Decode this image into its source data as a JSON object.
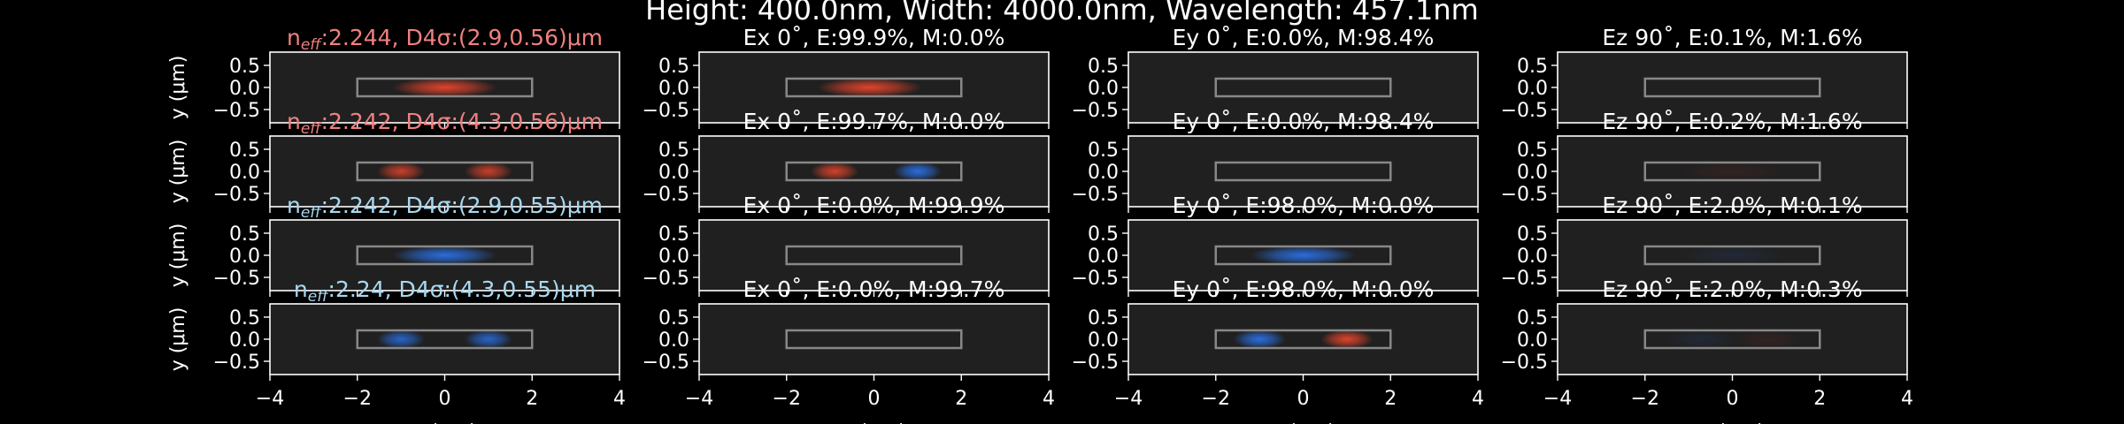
{
  "figure": {
    "suptitle": "Height: 400.0nm, Width: 4000.0nm, Wavelength: 457.1nm",
    "background": "#000000",
    "panel_bg": "#202020",
    "text_color": "#ffffff",
    "red": "#ff4a2e",
    "blue": "#2c7bff",
    "waveguide_outline": "#888888"
  },
  "chart_data": {
    "type": "heatmap",
    "xlabel": "x (μm)",
    "ylabel": "y (μm)",
    "xlim": [
      -4,
      4
    ],
    "ylim": [
      -0.8,
      0.8
    ],
    "xticks": [
      "−4",
      "−2",
      "0",
      "2",
      "4"
    ],
    "yticks": [
      "0.5",
      "0.0",
      "−0.5"
    ],
    "waveguide": {
      "x": [
        -2,
        2
      ],
      "y": [
        -0.2,
        0.2
      ]
    },
    "column_titles": [
      [
        "Ex 0˚, E:99.9%, M:0.0%",
        "Ey 0˚, E:0.0%, M:98.4%",
        "Ez 90˚, E:0.1%, M:1.6%"
      ],
      [
        "Ex 0˚, E:99.7%, M:0.0%",
        "Ey 0˚, E:0.0%, M:98.4%",
        "Ez 90˚, E:0.2%, M:1.6%"
      ],
      [
        "Ex 0˚, E:0.0%, M:99.9%",
        "Ey 0˚, E:98.0%, M:0.0%",
        "Ez 90˚, E:2.0%, M:0.1%"
      ],
      [
        "Ex 0˚, E:0.0%, M:99.7%",
        "Ey 0˚, E:98.0%, M:0.0%",
        "Ez 90˚, E:2.0%, M:0.3%"
      ]
    ],
    "modes": [
      {
        "neff": "2.244",
        "d4s": "D4σ:(2.9,0.56)μm",
        "color": "#f08080",
        "fields": [
          [
            {
              "x": 0,
              "w": 1.2,
              "s": 1,
              "a": 0.85
            }
          ],
          [
            {
              "x": -0.1,
              "w": 1.2,
              "s": 1,
              "a": 0.85
            }
          ],
          [],
          []
        ]
      },
      {
        "neff": "2.242",
        "d4s": "D4σ:(4.3,0.56)μm",
        "color": "#f08080",
        "fields": [
          [
            {
              "x": -1,
              "w": 0.55,
              "s": 1,
              "a": 0.75
            },
            {
              "x": 1,
              "w": 0.55,
              "s": 1,
              "a": 0.75
            }
          ],
          [
            {
              "x": -0.9,
              "w": 0.55,
              "s": 1,
              "a": 0.8
            },
            {
              "x": 1,
              "w": 0.55,
              "s": -1,
              "a": 0.85
            }
          ],
          [],
          [
            {
              "x": 0,
              "w": 1.2,
              "s": 1,
              "a": 0.08
            }
          ]
        ]
      },
      {
        "neff": "2.242",
        "d4s": "D4σ:(2.9,0.55)μm",
        "color": "#a8d8f0",
        "fields": [
          [
            {
              "x": 0,
              "w": 1.2,
              "s": -1,
              "a": 0.85
            }
          ],
          [],
          [
            {
              "x": 0,
              "w": 1.2,
              "s": -1,
              "a": 0.85
            }
          ],
          [
            {
              "x": 0,
              "w": 1.2,
              "s": -1,
              "a": 0.1
            }
          ]
        ]
      },
      {
        "neff": "2.24",
        "d4s": "D4σ:(4.3,0.55)μm",
        "color": "#a8d8f0",
        "fields": [
          [
            {
              "x": -1,
              "w": 0.55,
              "s": -1,
              "a": 0.75
            },
            {
              "x": 1,
              "w": 0.55,
              "s": -1,
              "a": 0.75
            }
          ],
          [],
          [
            {
              "x": -1,
              "w": 0.6,
              "s": -1,
              "a": 0.85
            },
            {
              "x": 1,
              "w": 0.6,
              "s": 1,
              "a": 0.85
            }
          ],
          [
            {
              "x": -0.7,
              "w": 0.8,
              "s": -1,
              "a": 0.1
            },
            {
              "x": 0.8,
              "w": 0.8,
              "s": 1,
              "a": 0.08
            }
          ]
        ]
      }
    ]
  }
}
